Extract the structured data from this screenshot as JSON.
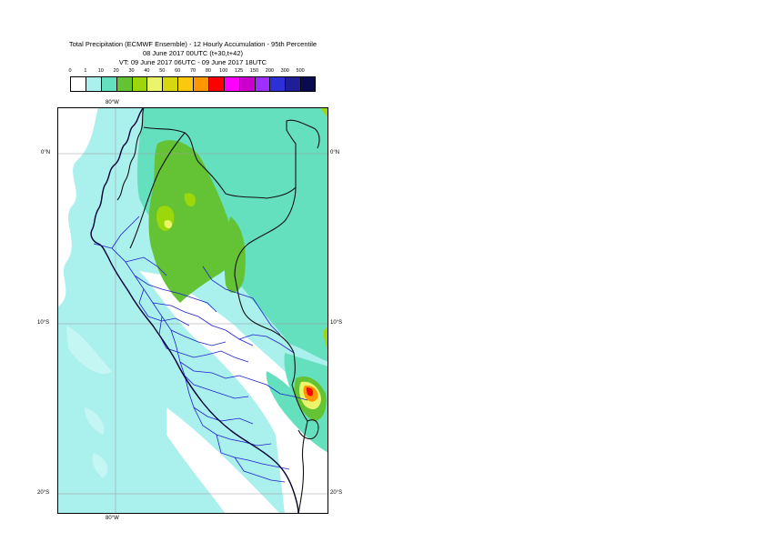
{
  "header": {
    "line1": "Total Precipitation (ECMWF Ensemble) - 12 Hourly Accumulation - 95th Percentile",
    "line2": "08 June 2017 00UTC (t+30,t+42)",
    "line3": "VT: 09 June 2017 06UTC - 09 June 2017 18UTC"
  },
  "colorbar": {
    "ticks": [
      "0",
      "1",
      "10",
      "20",
      "30",
      "40",
      "50",
      "60",
      "70",
      "80",
      "100",
      "125",
      "150",
      "200",
      "300",
      "500"
    ],
    "colors": [
      "#ffffff",
      "#aaf0ed",
      "#64e0bf",
      "#64c334",
      "#9bd70a",
      "#eaf56c",
      "#d7d70f",
      "#fac80f",
      "#ff9600",
      "#ff0000",
      "#ff00ff",
      "#cc00cc",
      "#9f2fff",
      "#2f2fd7",
      "#1e1e96",
      "#0a0a50"
    ]
  },
  "map": {
    "lon_labels": {
      "top": "80°W",
      "bottom": "80°W"
    },
    "lat_labels": {
      "eq_left": "0°N",
      "eq_right": "0°N",
      "s10_left": "10°S",
      "s10_right": "10°S",
      "s20_left": "20°S",
      "s20_right": "20°S"
    },
    "colors": {
      "ocean": "#aaf0ed",
      "ocean_light": "#c4f6f4",
      "land": "#ffffff"
    }
  }
}
